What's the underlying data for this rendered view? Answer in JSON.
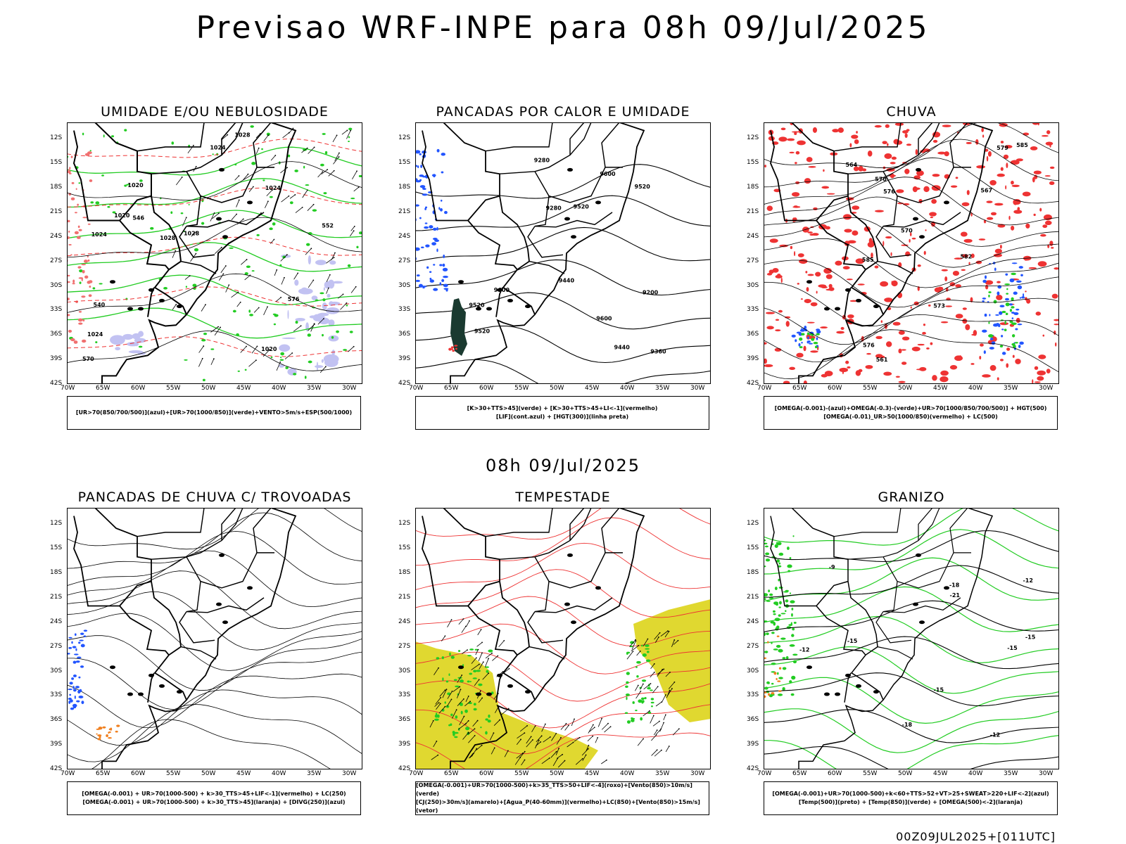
{
  "main_title": "Previsao WRF-INPE  para 08h 09/Jul/2025",
  "mid_date": "08h 09/Jul/2025",
  "footer": "00Z09JUL2025+[011UTC]",
  "axes": {
    "lat_labels": [
      "12S",
      "15S",
      "18S",
      "21S",
      "24S",
      "27S",
      "30S",
      "33S",
      "36S",
      "39S",
      "42S"
    ],
    "lon_labels": [
      "70W",
      "65W",
      "60W",
      "55W",
      "50W",
      "45W",
      "40W",
      "35W",
      "30W"
    ]
  },
  "colors": {
    "green": "#22cc22",
    "red": "#ee3333",
    "blue": "#2255ff",
    "lavender": "#b8b8f0",
    "yellow": "#e0d830",
    "orange": "#f08020",
    "darkgreen": "#1a3a30"
  },
  "panels": [
    {
      "id": "umidade",
      "title": "UMIDADE E/OU NEBULOSIDADE",
      "legend": [
        "[UR>70(850/700/500)](azul)+[UR>70(1000/850)](verde)+VENTO>5m/s+ESP(500/1000)"
      ],
      "contour_labels": [
        "1020",
        "1020",
        "1020",
        "1024",
        "1024",
        "1024",
        "1028",
        "1028",
        "1028",
        "1024",
        "570",
        "576",
        "552",
        "546",
        "540"
      ]
    },
    {
      "id": "pancadas-calor",
      "title": "PANCADAS POR CALOR E UMIDADE",
      "legend": [
        "[K>30+TTS>45](verde) + [K>30+TTS>45+LI<-1](vermelho)",
        "[LIF](cont.azul) + [HGT(300)](linha preta)"
      ],
      "contour_labels": [
        "9600",
        "9600",
        "9520",
        "9600",
        "9520",
        "9520",
        "9520",
        "9440",
        "9440",
        "9360",
        "9280",
        "9200",
        "9280"
      ]
    },
    {
      "id": "chuva",
      "title": "CHUVA",
      "legend": [
        "[OMEGA(-0.001)-(azul)+OMEGA(-0.3)-(verde)+UR>70(1000/850/700/500)] + HGT(500)",
        "[OMEGA(-0.01)_UR>50(1000/850)(vermelho) + LC(500)"
      ],
      "contour_labels": [
        "585",
        "585",
        "582",
        "576",
        "573",
        "570",
        "567",
        "576",
        "570",
        "564",
        "561",
        "579"
      ]
    },
    {
      "id": "trovoadas",
      "title": "PANCADAS DE CHUVA C/ TROVOADAS",
      "legend": [
        "[OMEGA(-0.001) + UR>70(1000-500) + k>30_TTS>45+LIF<-1](vermelho) + LC(250)",
        "[OMEGA(-0.001) + UR>70(1000-500) + k>30_TTS>45](laranja) + [DIVG(250)](azul)"
      ]
    },
    {
      "id": "tempestade",
      "title": "TEMPESTADE",
      "legend": [
        "[OMEGA(-0.001)+UR>70(1000-500)+k>35_TTS>50+LIF<-4](roxo)+[Vento(850)>10m/s](verde)",
        "[CJ(250)>30m/s](amarelo)+[Agua_P(40-60mm)](vermelho)+LC(850)+[Vento(850)>15m/s](vetor)"
      ]
    },
    {
      "id": "granizo",
      "title": "GRANIZO",
      "legend": [
        "[OMEGA(-0.001)+UR>70(1000-500)+k<60+TTS>52+VT>25+SWEAT>220+LIF<-2](azul)",
        "[Temp(500)](preto) + [Temp(850)](verde) + [OMEGA(500)<-2](laranja)"
      ],
      "contour_labels": [
        "-9",
        "-12",
        "-12",
        "-15",
        "-15",
        "-18",
        "-18",
        "-21",
        "-12",
        "-15",
        "-15"
      ]
    }
  ]
}
